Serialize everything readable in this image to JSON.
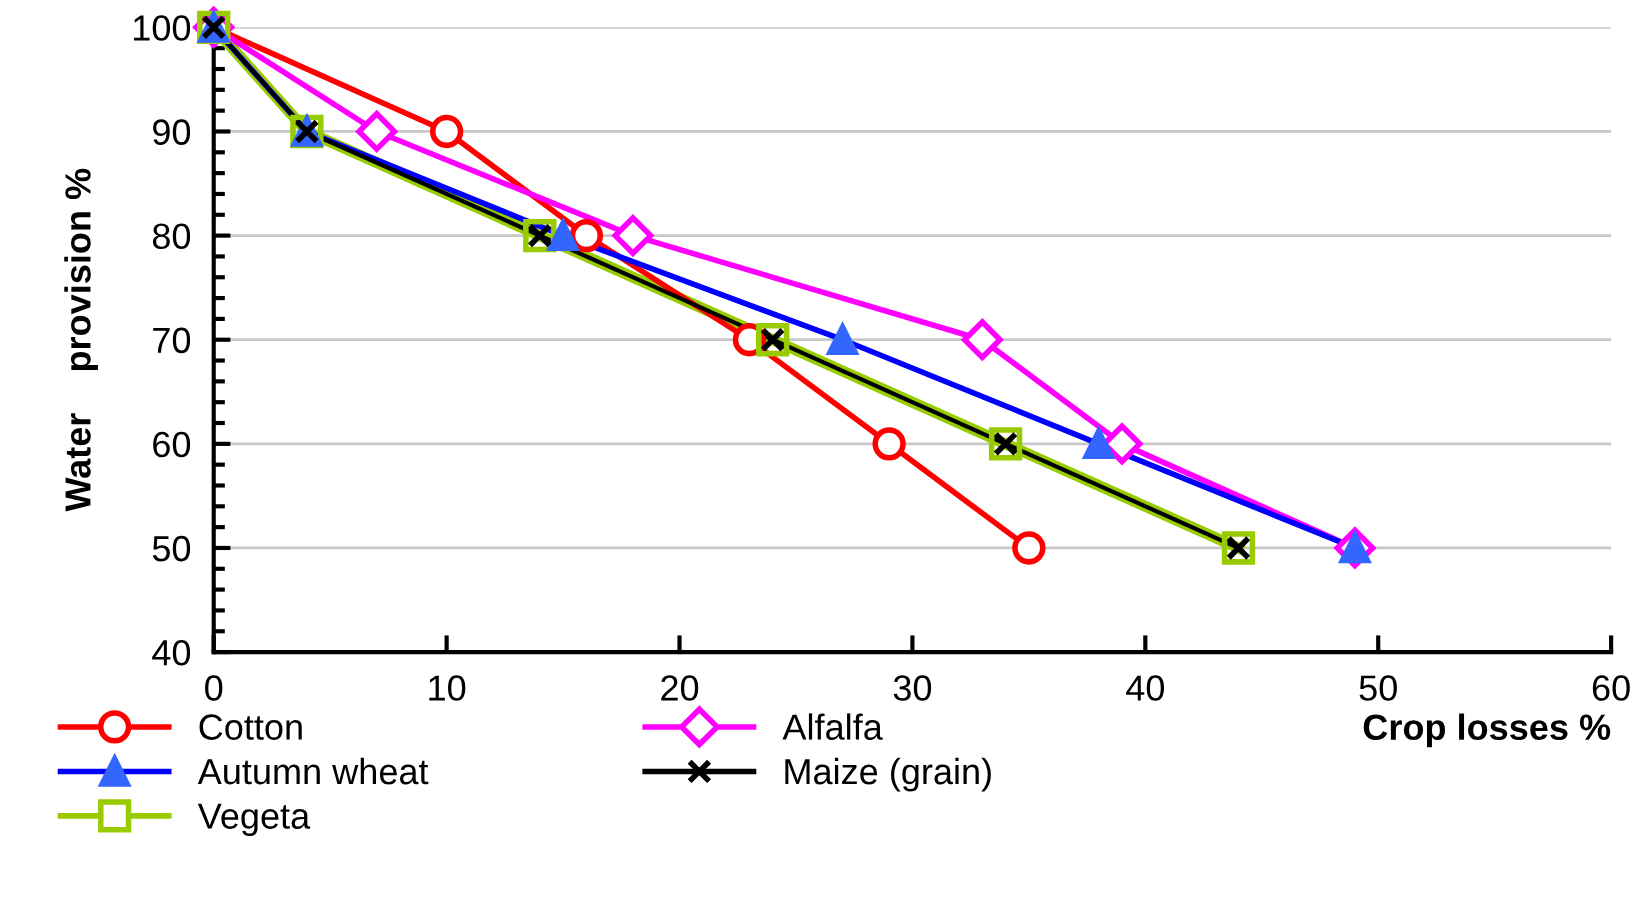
{
  "chart_data": {
    "type": "line",
    "xlabel": "Crop losses %",
    "ylabel": "Water    provision %",
    "xlim": [
      0,
      60
    ],
    "xticks": [
      0,
      10,
      20,
      30,
      40,
      50,
      60
    ],
    "ylim": [
      40,
      100
    ],
    "yticks": [
      40,
      50,
      60,
      70,
      80,
      90,
      100
    ],
    "grid": "y",
    "legend": "bottom",
    "series": [
      {
        "name": "Cotton",
        "color": "#ff0000",
        "marker": "circle",
        "x": [
          0,
          10,
          16,
          23,
          29,
          35
        ],
        "values": [
          100,
          90,
          80,
          70,
          60,
          50
        ]
      },
      {
        "name": "Alfalfa",
        "color": "#ff00ff",
        "marker": "diamond",
        "x": [
          0,
          7,
          18,
          33,
          39,
          49
        ],
        "values": [
          100,
          90,
          80,
          70,
          60,
          50
        ]
      },
      {
        "name": "Autumn wheat",
        "color": "#0000ff",
        "marker": "triangle",
        "x": [
          0,
          4,
          15,
          27,
          38,
          49
        ],
        "values": [
          100,
          90,
          80,
          70,
          60,
          50
        ]
      },
      {
        "name": "Maize (grain)",
        "color": "#000000",
        "marker": "cross",
        "x": [
          0,
          4,
          14,
          24,
          34,
          44
        ],
        "values": [
          100,
          90,
          80,
          70,
          60,
          50
        ]
      },
      {
        "name": "Vegeta",
        "color": "#99cc00",
        "marker": "square",
        "x": [
          0,
          4,
          14,
          24,
          34,
          44
        ],
        "values": [
          100,
          90,
          80,
          70,
          60,
          50
        ]
      }
    ]
  }
}
